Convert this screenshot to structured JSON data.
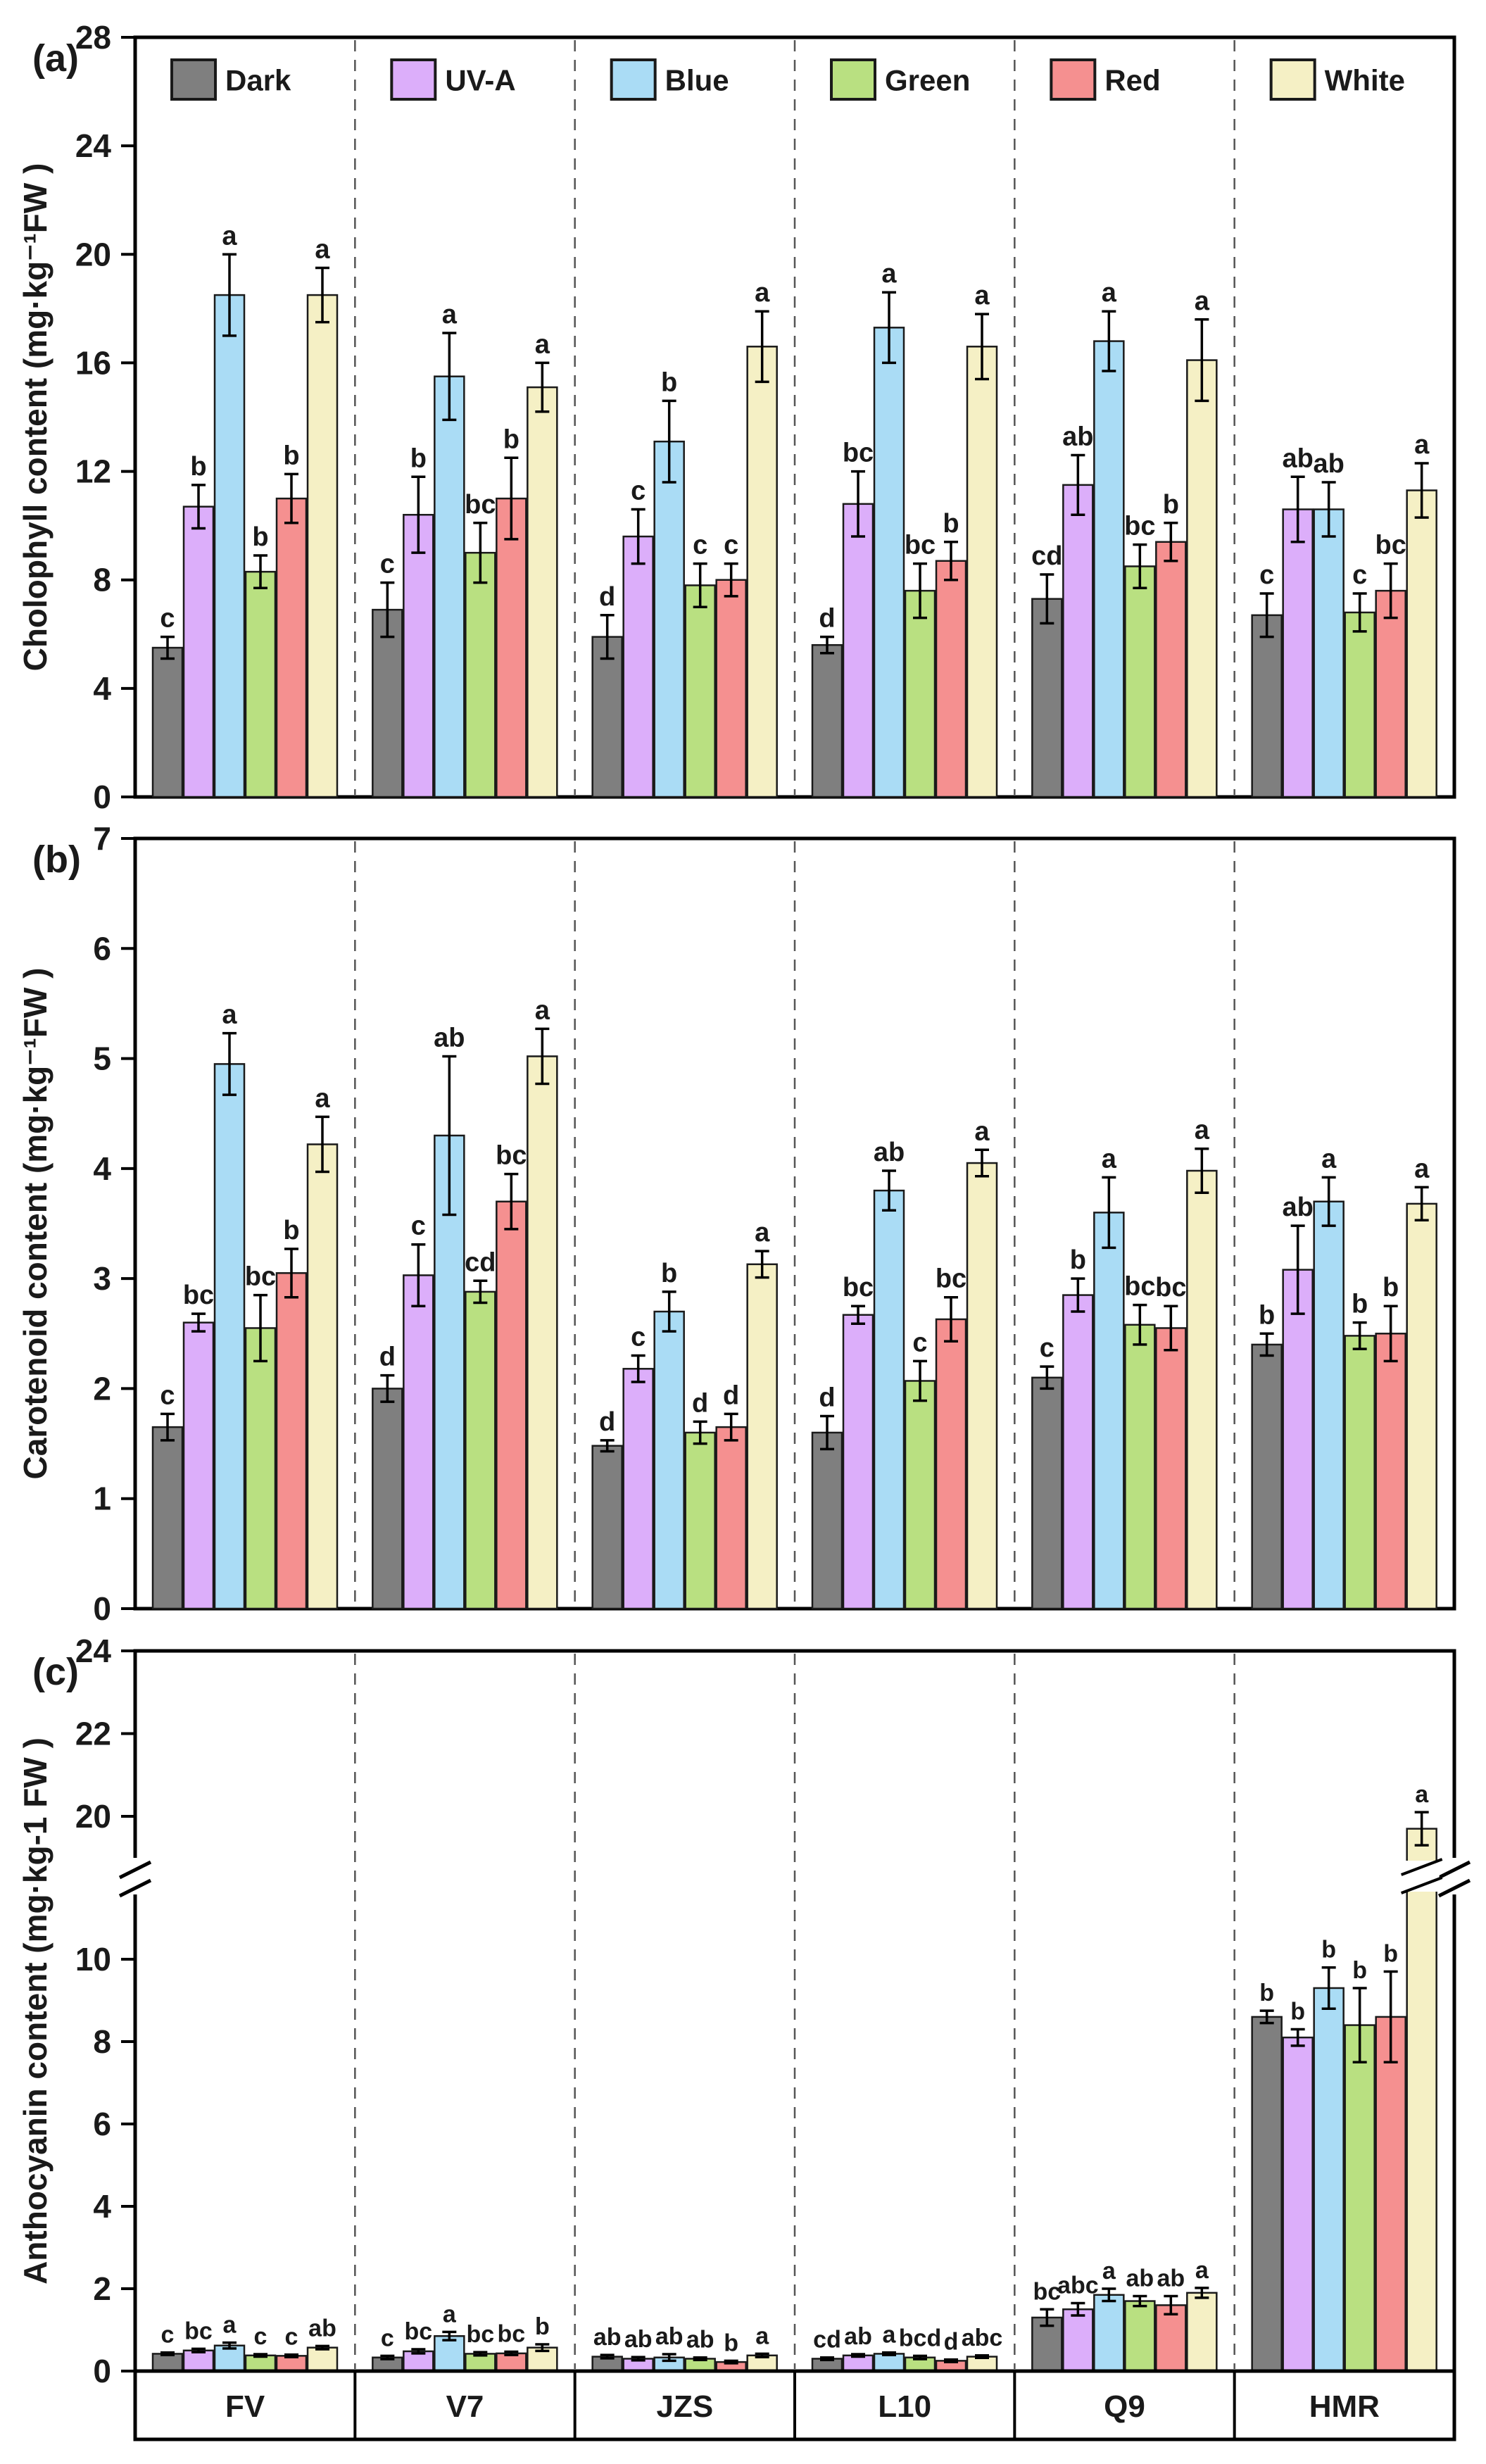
{
  "figure": {
    "title": "Pigment content under six light treatments for six cultivars",
    "categories": [
      "FV",
      "V7",
      "JZS",
      "L10",
      "Q9",
      "HMR"
    ],
    "legend": [
      {
        "label": "Dark",
        "color": "#7f7f7f"
      },
      {
        "label": "UV-A",
        "color": "#dcaefa"
      },
      {
        "label": "Blue",
        "color": "#aadcf5"
      },
      {
        "label": "Green",
        "color": "#b9e081"
      },
      {
        "label": "Red",
        "color": "#f59090"
      },
      {
        "label": "White",
        "color": "#f5f0c5"
      }
    ],
    "bar_border_color": "#1a1a1a",
    "axis_color": "#000000",
    "separator_color": "#555555"
  },
  "chart_data": [
    {
      "id": "a",
      "type": "bar",
      "panel_label": "(a)",
      "ylabel": "Cholophyll content (mg·kg⁻¹FW )",
      "ylim": [
        0,
        28
      ],
      "yticks": [
        0,
        4,
        8,
        12,
        16,
        20,
        24,
        28
      ],
      "grid": false,
      "legend_position": "top-inside",
      "categories": [
        "FV",
        "V7",
        "JZS",
        "L10",
        "Q9",
        "HMR"
      ],
      "series": [
        {
          "name": "Dark",
          "color": "#7f7f7f",
          "values": [
            5.5,
            6.9,
            5.9,
            5.6,
            7.3,
            6.7
          ],
          "errors": [
            0.4,
            1.0,
            0.8,
            0.3,
            0.9,
            0.8
          ],
          "letters": [
            "c",
            "c",
            "d",
            "d",
            "cd",
            "c"
          ]
        },
        {
          "name": "UV-A",
          "color": "#dcaefa",
          "values": [
            10.7,
            10.4,
            9.6,
            10.8,
            11.5,
            10.6
          ],
          "errors": [
            0.8,
            1.4,
            1.0,
            1.2,
            1.1,
            1.2
          ],
          "letters": [
            "b",
            "b",
            "c",
            "bc",
            "ab",
            "ab"
          ]
        },
        {
          "name": "Blue",
          "color": "#aadcf5",
          "values": [
            18.5,
            15.5,
            13.1,
            17.3,
            16.8,
            10.6
          ],
          "errors": [
            1.5,
            1.6,
            1.5,
            1.3,
            1.1,
            1.0
          ],
          "letters": [
            "a",
            "a",
            "b",
            "a",
            "a",
            "ab"
          ]
        },
        {
          "name": "Green",
          "color": "#b9e081",
          "values": [
            8.3,
            9.0,
            7.8,
            7.6,
            8.5,
            6.8
          ],
          "errors": [
            0.6,
            1.1,
            0.8,
            1.0,
            0.8,
            0.7
          ],
          "letters": [
            "b",
            "bc",
            "c",
            "bc",
            "bc",
            "c"
          ]
        },
        {
          "name": "Red",
          "color": "#f59090",
          "values": [
            11.0,
            11.0,
            8.0,
            8.7,
            9.4,
            7.6
          ],
          "errors": [
            0.9,
            1.5,
            0.6,
            0.7,
            0.7,
            1.0
          ],
          "letters": [
            "b",
            "b",
            "c",
            "b",
            "b",
            "bc"
          ]
        },
        {
          "name": "White",
          "color": "#f5f0c5",
          "values": [
            18.5,
            15.1,
            16.6,
            16.6,
            16.1,
            11.3
          ],
          "errors": [
            1.0,
            0.9,
            1.3,
            1.2,
            1.5,
            1.0
          ],
          "letters": [
            "a",
            "a",
            "a",
            "a",
            "a",
            "a"
          ]
        }
      ]
    },
    {
      "id": "b",
      "type": "bar",
      "panel_label": "(b)",
      "ylabel": "Carotenoid content (mg·kg⁻¹FW )",
      "ylim": [
        0,
        7
      ],
      "yticks": [
        0,
        1,
        2,
        3,
        4,
        5,
        6,
        7
      ],
      "grid": false,
      "categories": [
        "FV",
        "V7",
        "JZS",
        "L10",
        "Q9",
        "HMR"
      ],
      "series": [
        {
          "name": "Dark",
          "color": "#7f7f7f",
          "values": [
            1.65,
            2.0,
            1.48,
            1.6,
            2.1,
            2.4
          ],
          "errors": [
            0.12,
            0.12,
            0.05,
            0.15,
            0.1,
            0.1
          ],
          "letters": [
            "c",
            "d",
            "d",
            "d",
            "c",
            "b"
          ]
        },
        {
          "name": "UV-A",
          "color": "#dcaefa",
          "values": [
            2.6,
            3.03,
            2.18,
            2.67,
            2.85,
            3.08
          ],
          "errors": [
            0.08,
            0.28,
            0.12,
            0.08,
            0.15,
            0.4
          ],
          "letters": [
            "bc",
            "c",
            "c",
            "bc",
            "b",
            "ab"
          ]
        },
        {
          "name": "Blue",
          "color": "#aadcf5",
          "values": [
            4.95,
            4.3,
            2.7,
            3.8,
            3.6,
            3.7
          ],
          "errors": [
            0.28,
            0.72,
            0.18,
            0.18,
            0.32,
            0.22
          ],
          "letters": [
            "a",
            "ab",
            "b",
            "ab",
            "a",
            "a"
          ]
        },
        {
          "name": "Green",
          "color": "#b9e081",
          "values": [
            2.55,
            2.88,
            1.6,
            2.07,
            2.58,
            2.48
          ],
          "errors": [
            0.3,
            0.1,
            0.1,
            0.18,
            0.18,
            0.12
          ],
          "letters": [
            "bc",
            "cd",
            "d",
            "c",
            "bc",
            "b"
          ]
        },
        {
          "name": "Red",
          "color": "#f59090",
          "values": [
            3.05,
            3.7,
            1.65,
            2.63,
            2.55,
            2.5
          ],
          "errors": [
            0.22,
            0.25,
            0.12,
            0.2,
            0.2,
            0.25
          ],
          "letters": [
            "b",
            "bc",
            "d",
            "bc",
            "bc",
            "b"
          ]
        },
        {
          "name": "White",
          "color": "#f5f0c5",
          "values": [
            4.22,
            5.02,
            3.13,
            4.05,
            3.98,
            3.68
          ],
          "errors": [
            0.25,
            0.25,
            0.12,
            0.12,
            0.2,
            0.15
          ],
          "letters": [
            "a",
            "a",
            "a",
            "a",
            "a",
            "a"
          ]
        }
      ]
    },
    {
      "id": "c",
      "type": "bar",
      "panel_label": "(c)",
      "ylabel": "Anthocyanin content (mg·kg-1 FW )",
      "ylim": [
        0,
        24
      ],
      "axis_break": {
        "lower_max": 10,
        "upper_min": 20,
        "lower_ticks": [
          0,
          2,
          4,
          6,
          8,
          10
        ],
        "upper_ticks": [
          20,
          22,
          24
        ]
      },
      "grid": false,
      "categories": [
        "FV",
        "V7",
        "JZS",
        "L10",
        "Q9",
        "HMR"
      ],
      "series": [
        {
          "name": "Dark",
          "color": "#7f7f7f",
          "values": [
            0.42,
            0.33,
            0.35,
            0.3,
            1.3,
            8.6
          ],
          "errors": [
            0.03,
            0.04,
            0.04,
            0.03,
            0.2,
            0.15
          ],
          "letters": [
            "c",
            "c",
            "ab",
            "cd",
            "bc",
            "b"
          ]
        },
        {
          "name": "UV-A",
          "color": "#dcaefa",
          "values": [
            0.5,
            0.48,
            0.3,
            0.38,
            1.5,
            8.1
          ],
          "errors": [
            0.04,
            0.05,
            0.04,
            0.03,
            0.15,
            0.2
          ],
          "letters": [
            "bc",
            "bc",
            "ab",
            "ab",
            "abc",
            "b"
          ]
        },
        {
          "name": "Blue",
          "color": "#aadcf5",
          "values": [
            0.62,
            0.85,
            0.33,
            0.42,
            1.85,
            9.3
          ],
          "errors": [
            0.07,
            0.1,
            0.08,
            0.03,
            0.15,
            0.5
          ],
          "letters": [
            "a",
            "a",
            "ab",
            "a",
            "a",
            "b"
          ]
        },
        {
          "name": "Green",
          "color": "#b9e081",
          "values": [
            0.38,
            0.42,
            0.3,
            0.33,
            1.7,
            8.4
          ],
          "errors": [
            0.03,
            0.04,
            0.03,
            0.04,
            0.12,
            0.9
          ],
          "letters": [
            "c",
            "bc",
            "ab",
            "bcd",
            "ab",
            "b"
          ]
        },
        {
          "name": "Red",
          "color": "#f59090",
          "values": [
            0.37,
            0.43,
            0.22,
            0.25,
            1.6,
            8.6
          ],
          "errors": [
            0.03,
            0.04,
            0.03,
            0.03,
            0.22,
            1.1
          ],
          "letters": [
            "c",
            "bc",
            "b",
            "d",
            "ab",
            "b"
          ]
        },
        {
          "name": "White",
          "color": "#f5f0c5",
          "values": [
            0.57,
            0.57,
            0.38,
            0.35,
            1.9,
            19.7
          ],
          "errors": [
            0.04,
            0.08,
            0.04,
            0.03,
            0.12,
            0.4
          ],
          "letters": [
            "ab",
            "b",
            "a",
            "abc",
            "a",
            "a"
          ]
        }
      ]
    }
  ]
}
